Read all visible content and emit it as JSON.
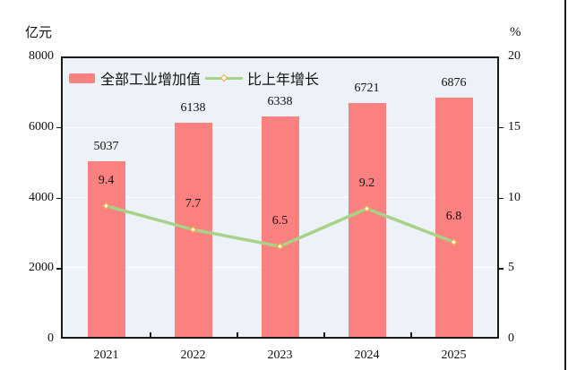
{
  "chart_data": {
    "type": "bar",
    "subtype": "bar-line-combo",
    "title": "",
    "categories": [
      "2021",
      "2022",
      "2023",
      "2024",
      "2025"
    ],
    "series": [
      {
        "name": "全部工业增加值",
        "type": "bar",
        "axis": "left",
        "color": "#FB8080",
        "values": [
          5037,
          6138,
          6338,
          6721,
          6876
        ],
        "data_labels": [
          "5037",
          "6138",
          "6338",
          "6721",
          "6876"
        ]
      },
      {
        "name": "比上年增长",
        "type": "line",
        "axis": "right",
        "color": "#A8D287",
        "marker": {
          "shape": "diamond",
          "stroke": "#F0A344",
          "fill": "#FFFFFF"
        },
        "values": [
          9.4,
          7.7,
          6.5,
          9.2,
          6.8
        ],
        "data_labels": [
          "9.4",
          "7.7",
          "6.5",
          "9.2",
          "6.8"
        ]
      }
    ],
    "left_axis": {
      "unit": "亿元",
      "ticks": [
        0,
        2000,
        4000,
        6000,
        8000
      ],
      "min": 0,
      "max": 8000
    },
    "right_axis": {
      "unit": "%",
      "ticks": [
        0,
        5,
        10,
        15,
        20
      ],
      "min": 0,
      "max": 20
    },
    "gridline_values": [
      2000,
      4000,
      6000
    ],
    "grid_color": "#FFFFFF",
    "plot_background": "#ECF2F7",
    "legend_position": "top-left-inside"
  }
}
